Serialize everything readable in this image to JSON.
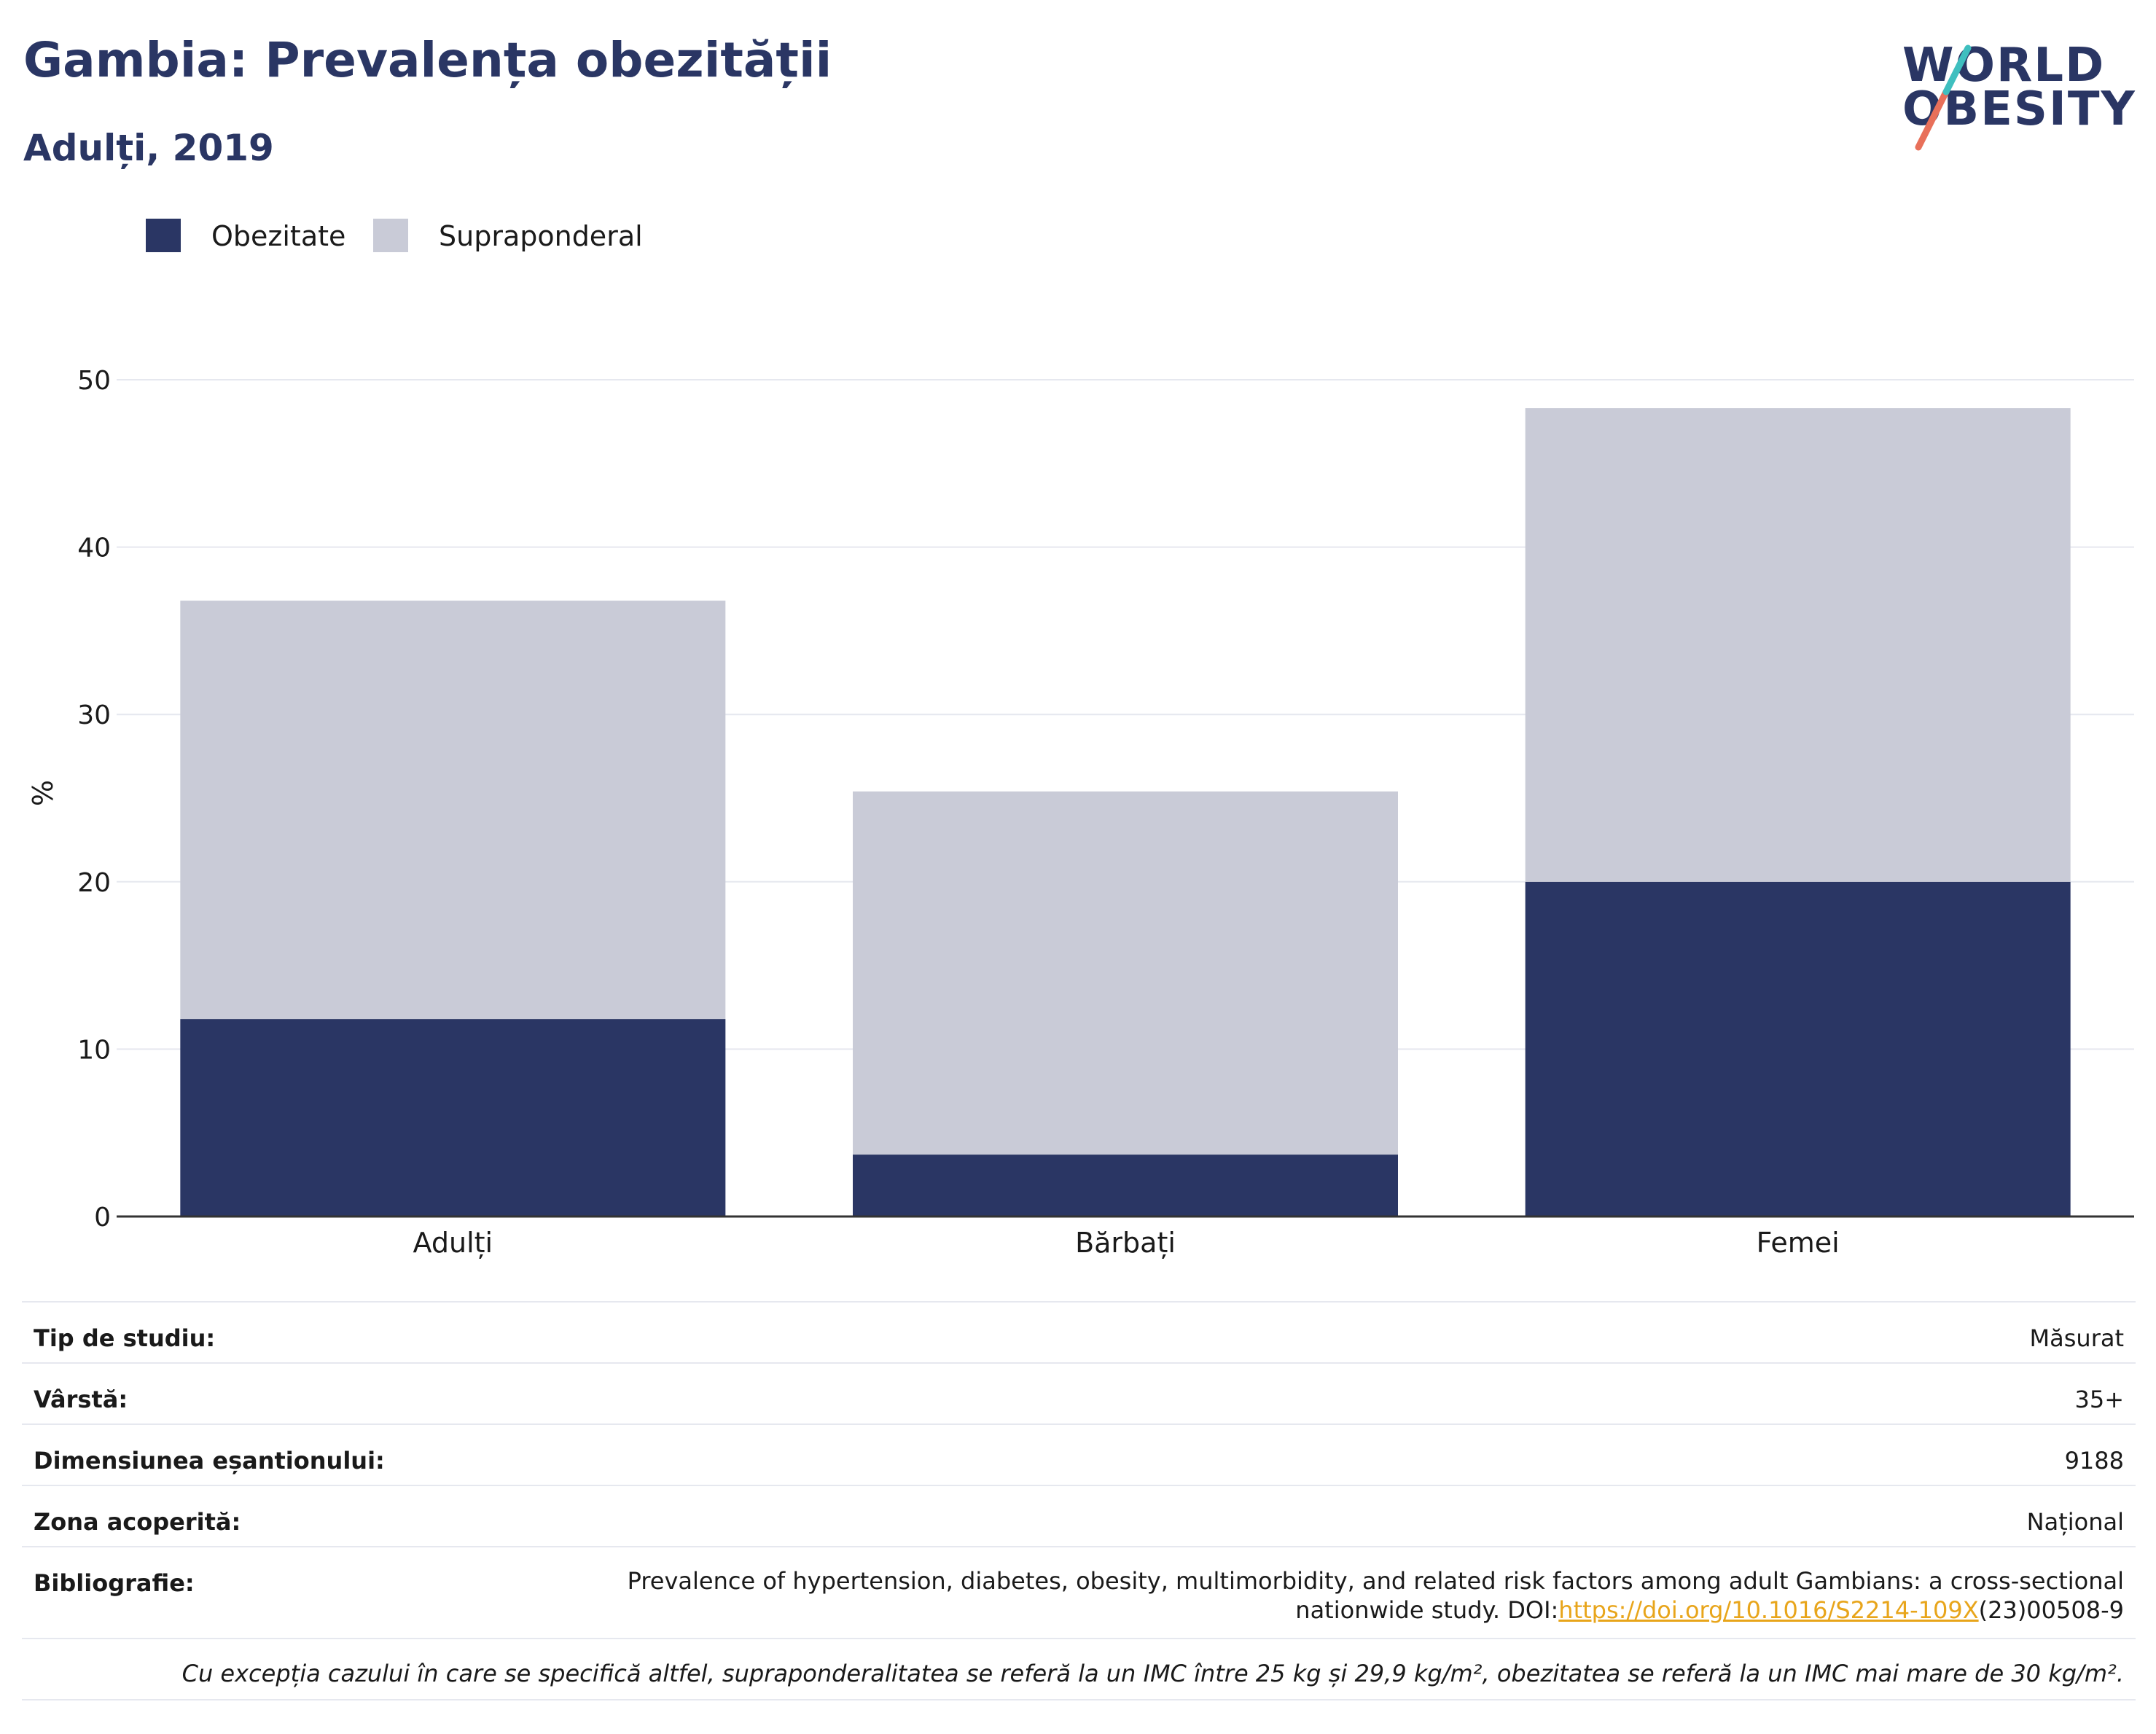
{
  "header": {
    "title": "Gambia: Prevalența obezității",
    "subtitle": "Adulți, 2019"
  },
  "logo": {
    "line1": "WORLD",
    "line2": "OBESITY"
  },
  "legend": [
    {
      "label": "Obezitate",
      "color": "#2a3664"
    },
    {
      "label": "Supraponderal",
      "color": "#c9cbd7"
    }
  ],
  "chart_data": {
    "type": "bar",
    "stacked": true,
    "categories": [
      "Adulți",
      "Bărbați",
      "Femei"
    ],
    "series": [
      {
        "name": "Obezitate",
        "color": "#2a3664",
        "values": [
          11.8,
          3.7,
          20.0
        ]
      },
      {
        "name": "Supraponderal",
        "color": "#c9cbd7",
        "values": [
          25.0,
          21.7,
          28.3
        ]
      }
    ],
    "ylabel": "%",
    "ylim": [
      0,
      50
    ],
    "yticks": [
      0,
      10,
      20,
      30,
      40,
      50
    ],
    "grid": true,
    "legend_position": "top-left"
  },
  "info": {
    "rows": [
      {
        "label": "Tip de studiu:",
        "value": "Măsurat"
      },
      {
        "label": "Vârstă:",
        "value": "35+"
      },
      {
        "label": "Dimensiunea eșantionului:",
        "value": "9188"
      },
      {
        "label": "Zona acoperită:",
        "value": "Național"
      }
    ],
    "bibliography": {
      "label": "Bibliografie:",
      "line1": "Prevalence of hypertension, diabetes, obesity, multimorbidity, and related risk factors among adult Gambians: a cross-sectional",
      "line2_prefix": "nationwide study. DOI:",
      "link": "https://doi.org/10.1016/S2214-109X",
      "line2_suffix": "(23)00508-9"
    },
    "note": "Cu excepția cazului în care se specifică altfel, supraponderalitatea se referă la un IMC între 25 kg și 29,9 kg/m², obezitatea se referă la un IMC mai mare de 30 kg/m²."
  }
}
